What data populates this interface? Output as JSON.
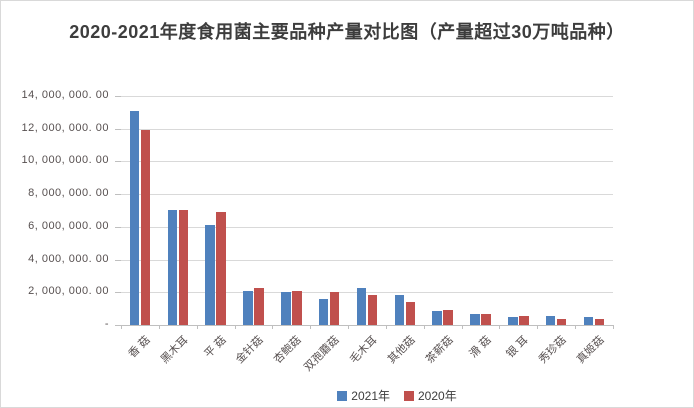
{
  "title": "2020-2021年度食用菌主要品种产量对比图（产量超过30万吨品种）",
  "colors": {
    "series_2021": "#4F81BD",
    "series_2020": "#C0504D",
    "gridline": "#D9D9D9",
    "axis_line": "#BFBFBF",
    "tick_text": "#575050",
    "title_text": "#3D3D3D"
  },
  "legend": {
    "items": [
      {
        "label": "2021年",
        "color": "#4F81BD"
      },
      {
        "label": "2020年",
        "color": "#C0504D"
      }
    ]
  },
  "chart_data": {
    "type": "bar",
    "title": "2020-2021年度食用菌主要品种产量对比图（产量超过30万吨品种）",
    "categories": [
      "香菇",
      "黑木耳",
      "平菇",
      "金针菇",
      "杏鲍菇",
      "双孢蘑菇",
      "毛木耳",
      "其他菇",
      "茶薪菇",
      "滑菇",
      "银耳",
      "秀珍菇",
      "真姬菇"
    ],
    "x_tick_labels": [
      "香 菇",
      "黑木耳",
      "平 菇",
      "金针菇",
      "杏鲍菇",
      "双孢蘑菇",
      "毛木耳",
      "其他菇",
      "茶薪菇",
      "滑 菇",
      "银 耳",
      "秀珍菇",
      "真姬菇"
    ],
    "series": [
      {
        "name": "2021年",
        "color": "#4F81BD",
        "values": [
          13100000,
          7050000,
          6100000,
          2100000,
          2030000,
          1610000,
          2250000,
          1840000,
          870000,
          660000,
          490000,
          580000,
          520000
        ]
      },
      {
        "name": "2020年",
        "color": "#C0504D",
        "values": [
          11900000,
          7050000,
          6900000,
          2250000,
          2090000,
          2040000,
          1830000,
          1430000,
          920000,
          700000,
          560000,
          390000,
          350000
        ]
      }
    ],
    "xlabel": "",
    "ylabel": "",
    "ylim": [
      0,
      14000000
    ],
    "y_step": 2000000,
    "y_tick_labels": [
      "-",
      "2, 000, 000. 00",
      "4, 000, 000. 00",
      "6, 000, 000. 00",
      "8, 000, 000. 00",
      "10, 000, 000. 00",
      "12, 000, 000. 00",
      "14, 000, 000. 00"
    ],
    "grid": "horizontal",
    "legend_position": "bottom-center"
  }
}
